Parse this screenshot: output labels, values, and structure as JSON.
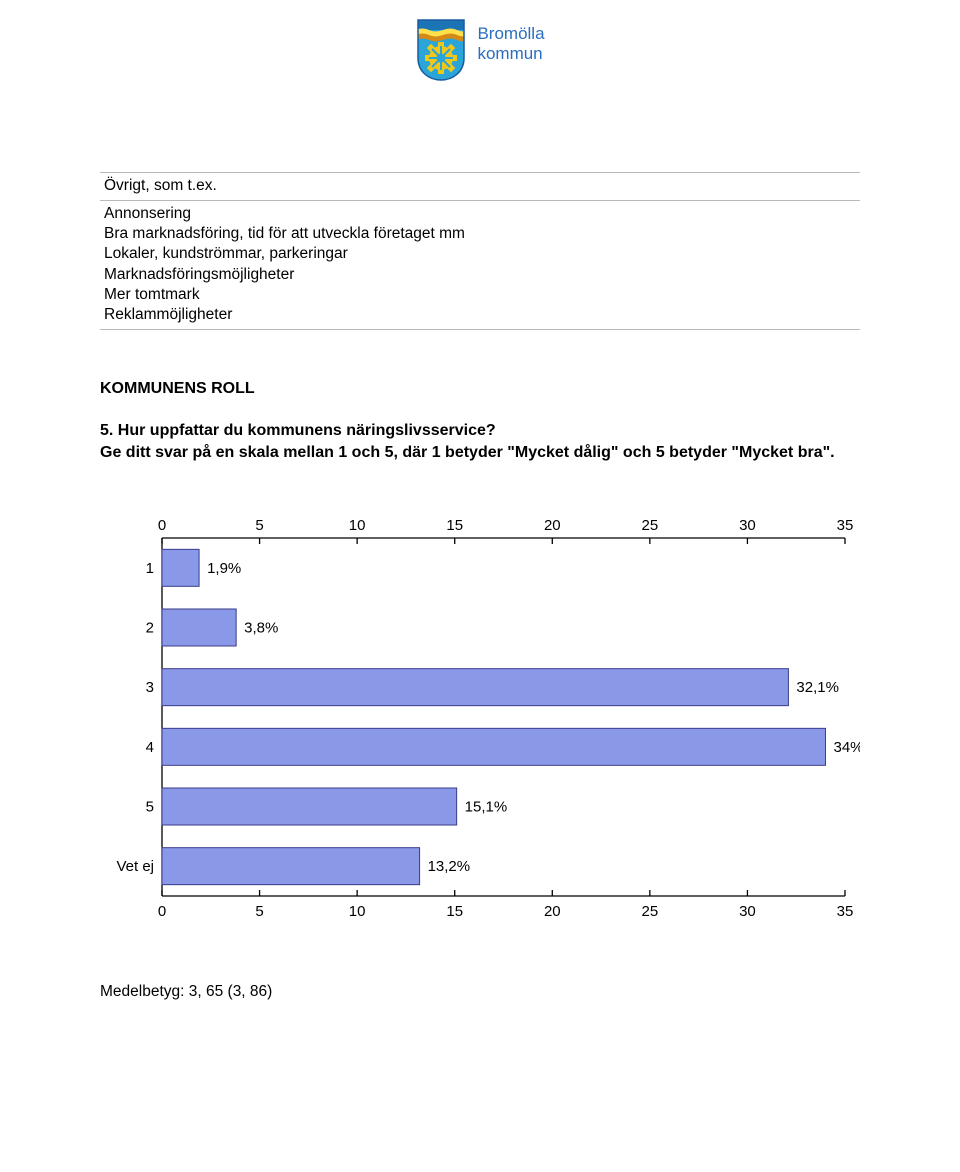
{
  "header": {
    "org_line1": "Bromölla",
    "org_line2": "kommun",
    "logo": {
      "top_band": "#1b74b3",
      "wave_light": "#ffe04a",
      "wave_dark": "#d38a17",
      "body": "#2aa5d8",
      "gear": "#f0c81a",
      "outline": "#1a5aa0"
    }
  },
  "table": {
    "row1": "Övrigt, som t.ex.",
    "row2": "Annonsering\nBra marknadsföring, tid för att utveckla företaget mm\nLokaler, kundströmmar, parkeringar\nMarknadsföringsmöjligheter\nMer tomtmark\nReklammöjligheter"
  },
  "section_title": "KOMMUNENS ROLL",
  "question": "5. Hur uppfattar du kommunens näringslivsservice?\nGe ditt svar på en skala mellan 1 och 5, där 1 betyder \"Mycket dålig\" och 5 betyder \"Mycket bra\".",
  "chart": {
    "type": "bar-horizontal",
    "x_min": 0,
    "x_max": 35,
    "x_tick_step": 5,
    "categories": [
      "1",
      "2",
      "3",
      "4",
      "5",
      "Vet ej"
    ],
    "values": [
      1.9,
      3.8,
      32.1,
      34,
      15.1,
      13.2
    ],
    "labels": [
      "1,9%",
      "3,8%",
      "32,1%",
      "34%",
      "15,1%",
      "13,2%"
    ],
    "bar_fill": "#8a98e8",
    "bar_stroke": "#3b3b8a",
    "bar_stroke_width": 1,
    "plot_bg": "#ffffff",
    "axis_color": "#000000",
    "tick_font_size": 15,
    "label_font_size": 15.5
  },
  "footer": "Medelbetyg: 3, 65 (3, 86)"
}
